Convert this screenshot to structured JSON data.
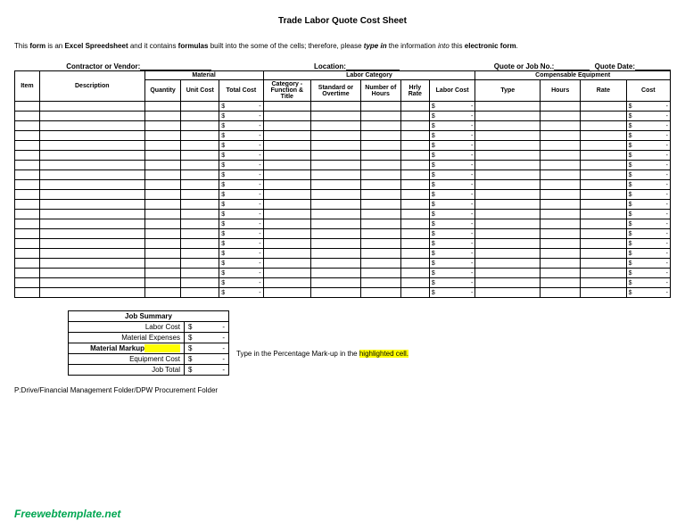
{
  "title": "Trade Labor Quote Cost Sheet",
  "instructions": {
    "p1": "This ",
    "b1": "form",
    "p2": " is an ",
    "b2": "Excel Spreedsheet",
    "p3": " and it contains ",
    "b3": "formulas",
    "p4": " built into the some of the cells; therefore, please ",
    "bi4": "type in",
    "p5": " the information ",
    "i5": "into",
    "p6": " this ",
    "b6": "electronic form",
    "p7": "."
  },
  "headerLabels": {
    "contractor": "Contractor or Vendor:",
    "location": "Location:",
    "quoteNo": "Quote or Job No.:",
    "quoteDate": "Quote Date:"
  },
  "sections": {
    "material": "Material",
    "labor": "Labor Category",
    "equipment": "Compensable Equipment"
  },
  "columns": {
    "item": "Item",
    "description": "Description",
    "quantity": "Quantity",
    "unitCost": "Unit Cost",
    "totalCost": "Total Cost",
    "category": "Category - Function & Title",
    "standard": "Standard or Overtime",
    "numHours": "Number of Hours",
    "hrlyRate": "Hrly Rate",
    "laborCost": "Labor Cost",
    "type": "Type",
    "hours": "Hours",
    "rate": "Rate",
    "cost": "Cost"
  },
  "moneySymbol": "$",
  "dash": "-",
  "rowCount": 20,
  "summary": {
    "title": "Job Summary",
    "rows": [
      {
        "label": "Labor Cost",
        "bold": false,
        "highlight": false
      },
      {
        "label": "Material Expenses",
        "bold": false,
        "highlight": false
      },
      {
        "label": "Material Markup",
        "bold": true,
        "highlight": true
      },
      {
        "label": "Equipment Cost",
        "bold": false,
        "highlight": false
      },
      {
        "label": "Job Total",
        "bold": false,
        "highlight": false
      }
    ]
  },
  "markupNote": {
    "p1": "Type in the Percentage Mark-up in the ",
    "hl": "highlighted cell.",
    "p2": ""
  },
  "path": "P:Drive/Financial Management Folder/DPW Procurement Folder",
  "watermark": "Freewebtemplate.net"
}
